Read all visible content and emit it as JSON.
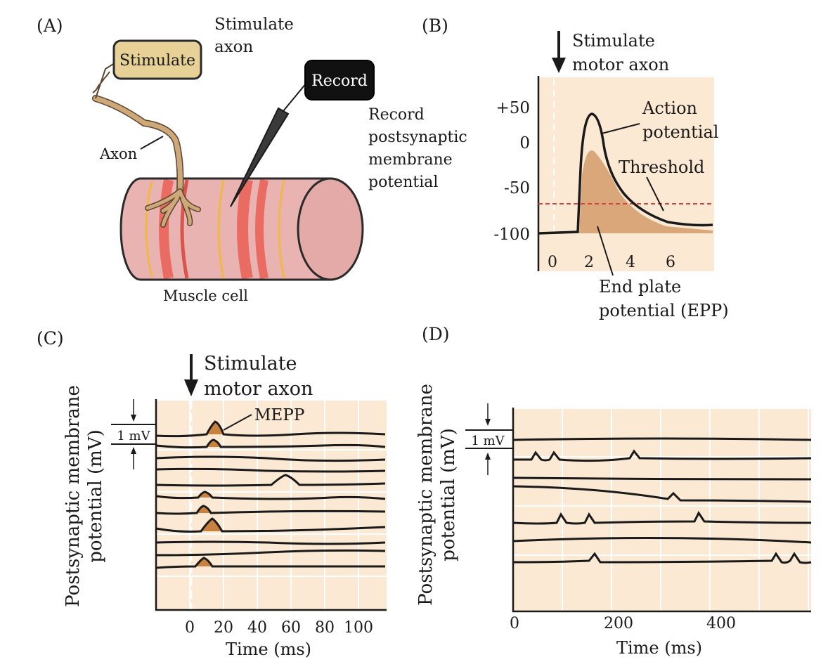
{
  "colors": {
    "plot_bg": "#fbe9d3",
    "grid": "#ffffff",
    "trace": "#1a1a1a",
    "epp_fill": "#d9a77a",
    "mepp_fill": "#c8813f",
    "threshold": "#d9433f",
    "muscle": "#e8b3b0",
    "band_dark": "#e96b62",
    "band_yellow": "#f0b844",
    "axon": "#cfa87a",
    "stim_box": "#e7d197"
  },
  "panel_a": {
    "letter": "(A)",
    "stim_header": [
      "Stimulate",
      "axon"
    ],
    "stimulate_box": "Stimulate",
    "record_box": "Record",
    "record_desc": [
      "Record",
      "postsynaptic",
      "membrane",
      "potential"
    ],
    "axon_label": "Axon",
    "muscle_label": "Muscle cell"
  },
  "panel_b": {
    "letter": "(B)",
    "stim_label": [
      "Stimulate",
      "motor axon"
    ],
    "y_ticks": [
      "+50",
      "0",
      "-50",
      "-100"
    ],
    "x_ticks": [
      "0",
      "2",
      "4",
      "6"
    ],
    "action_label": [
      "Action",
      "potential"
    ],
    "threshold_label": "Threshold",
    "epp_label": [
      "End plate",
      "potential (EPP)"
    ]
  },
  "panel_c": {
    "letter": "(C)",
    "stim_label": [
      "Stimulate",
      "motor axon"
    ],
    "mepp_label": "MEPP",
    "scale_label": "1 mV",
    "ylabel": [
      "Postsynaptic membrane",
      "potential (mV)"
    ],
    "xlabel": "Time (ms)",
    "x_ticks": [
      "0",
      "20",
      "40",
      "60",
      "80",
      "100"
    ]
  },
  "panel_d": {
    "letter": "(D)",
    "scale_label": "1 mV",
    "ylabel": [
      "Postsynaptic membrane",
      "potential (mV)"
    ],
    "xlabel": "Time (ms)",
    "x_ticks": [
      "0",
      "200",
      "400"
    ]
  }
}
